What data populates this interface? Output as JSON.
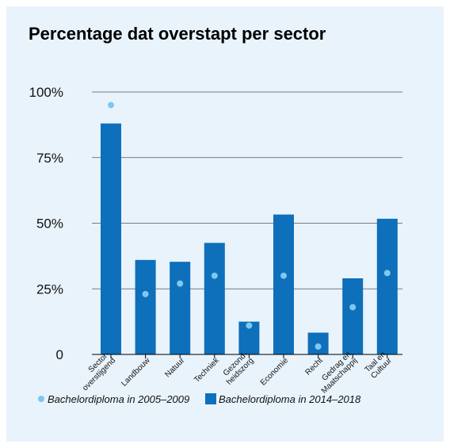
{
  "chart_data": {
    "type": "bar",
    "title": "Percentage dat overstapt per sector",
    "categories": [
      [
        "Sector-",
        "overstijgend"
      ],
      [
        "Landbouw"
      ],
      [
        "Natuur"
      ],
      [
        "Techniek"
      ],
      [
        "Gezond-",
        "heidszorg"
      ],
      [
        "Economie"
      ],
      [
        "Recht"
      ],
      [
        "Gedrag en",
        "Maatschappij"
      ],
      [
        "Taal en",
        "Cultuur"
      ]
    ],
    "series": [
      {
        "name": "Bachelordiploma in 2014–2018",
        "kind": "bar",
        "color": "#0e6fbb",
        "values": [
          88,
          36,
          35.3,
          42.5,
          12.5,
          53.3,
          8.3,
          29,
          51.7
        ]
      },
      {
        "name": "Bachelordiploma in 2005–2009",
        "kind": "dot",
        "color": "#7ec8f0",
        "values": [
          95,
          23,
          27,
          30,
          11,
          30,
          3,
          18,
          31
        ]
      }
    ],
    "yticks": [
      {
        "value": 0,
        "label": "0"
      },
      {
        "value": 25,
        "label": "25%"
      },
      {
        "value": 50,
        "label": "50%"
      },
      {
        "value": 75,
        "label": "75%"
      },
      {
        "value": 100,
        "label": "100%"
      }
    ],
    "ylim": [
      0,
      100
    ],
    "grid": true,
    "legend_position": "bottom-left"
  }
}
